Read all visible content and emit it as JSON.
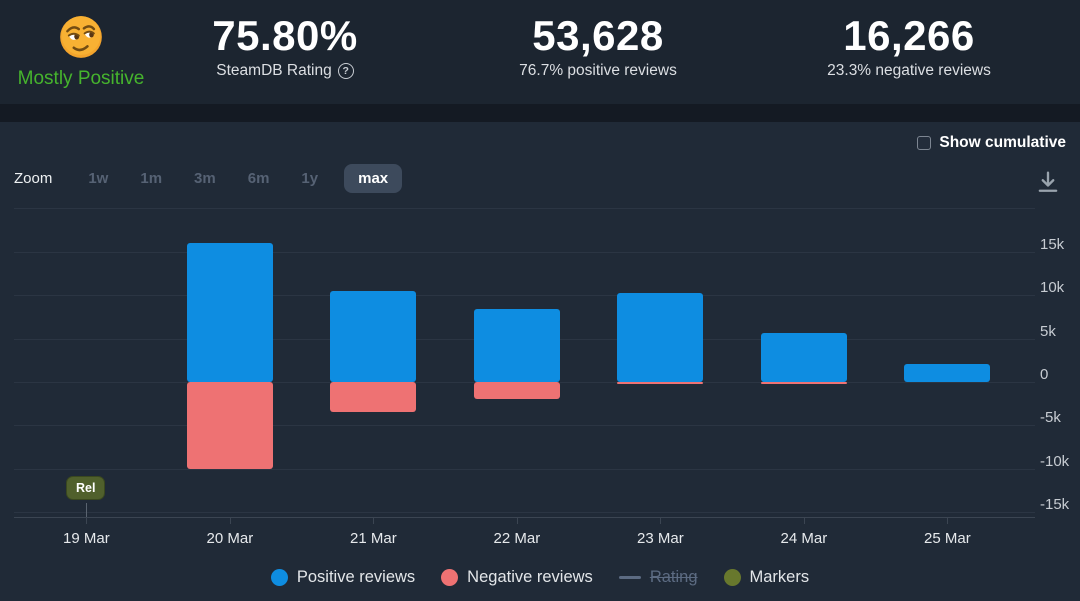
{
  "header": {
    "rating": {
      "emoji_icon": "smirking-face-emoji",
      "label": "Mostly Positive"
    },
    "stats": [
      {
        "value": "75.80%",
        "label": "SteamDB Rating",
        "help_icon": "?"
      },
      {
        "value": "53,628",
        "label": "76.7% positive reviews"
      },
      {
        "value": "16,266",
        "label": "23.3% negative reviews"
      }
    ]
  },
  "toolbar": {
    "show_cumulative_label": "Show cumulative",
    "show_cumulative_checked": false,
    "zoom_label": "Zoom",
    "zoom_options": [
      {
        "label": "1w",
        "active": false
      },
      {
        "label": "1m",
        "active": false
      },
      {
        "label": "3m",
        "active": false
      },
      {
        "label": "6m",
        "active": false
      },
      {
        "label": "1y",
        "active": false
      },
      {
        "label": "max",
        "active": true
      }
    ],
    "download_icon": "download-icon"
  },
  "chart_data": {
    "type": "bar",
    "title": "",
    "xlabel": "",
    "ylabel": "",
    "categories": [
      "19 Mar",
      "20 Mar",
      "21 Mar",
      "22 Mar",
      "23 Mar",
      "24 Mar",
      "25 Mar"
    ],
    "series": [
      {
        "name": "Positive reviews",
        "color": "#0e8de1",
        "values": [
          0,
          16000,
          10500,
          8400,
          10300,
          5700,
          2050
        ]
      },
      {
        "name": "Negative reviews",
        "color": "#ee7273",
        "values": [
          0,
          -10000,
          -3500,
          -2000,
          -250,
          -200,
          0
        ]
      }
    ],
    "ylim": [
      -15500,
      21000
    ],
    "gridlines": [
      20000,
      15000,
      10000,
      5000,
      0,
      -5000,
      -10000,
      -15000
    ],
    "yticks": [
      {
        "v": 15000,
        "label": "15k"
      },
      {
        "v": 10000,
        "label": "10k"
      },
      {
        "v": 5000,
        "label": "5k"
      },
      {
        "v": 0,
        "label": "0"
      },
      {
        "v": -5000,
        "label": "-5k"
      },
      {
        "v": -10000,
        "label": "-10k"
      },
      {
        "v": -15000,
        "label": "-15k"
      }
    ],
    "grid": true,
    "legend_position": "bottom",
    "markers": [
      {
        "label": "Rel",
        "category": "19 Mar"
      }
    ]
  },
  "legend": {
    "items": [
      {
        "label": "Positive reviews",
        "type": "dot",
        "color": "#0e8de1",
        "disabled": false
      },
      {
        "label": "Negative reviews",
        "type": "dot",
        "color": "#ee7273",
        "disabled": false
      },
      {
        "label": "Rating",
        "type": "dash",
        "color": "#5c6b82",
        "disabled": true
      },
      {
        "label": "Markers",
        "type": "dot",
        "color": "#68782d",
        "disabled": false
      }
    ]
  },
  "colors": {
    "header_bg": "#1c2530",
    "panel_bg": "#202a37",
    "positive": "#0e8de1",
    "negative": "#ee7273",
    "rating_green": "#46b42d",
    "marker_olive": "#68782d",
    "active_button_bg": "#3d4a5c"
  }
}
